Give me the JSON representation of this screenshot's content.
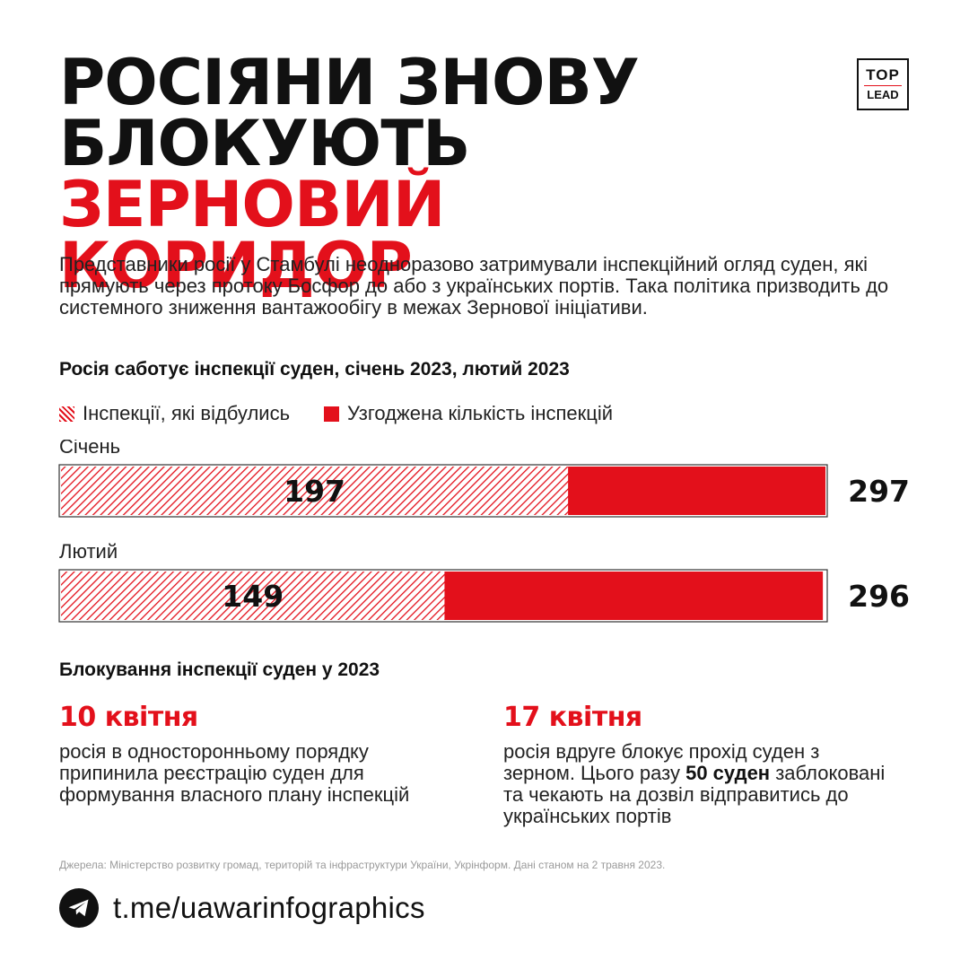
{
  "title": {
    "line1": "РОСІЯНИ ЗНОВУ",
    "line2_black": "БЛОКУЮТЬ ",
    "line2_red": "ЗЕРНОВИЙ",
    "line3_red": "КОРИДОР"
  },
  "logo": {
    "top": "TOP",
    "bottom": "LEAD"
  },
  "intro": "Представники росії у Стамбулі неодноразово затримували інспекційний огляд суден, які прямують через протоку Босфор до або з українських портів. Така політика призводить до системного зниження вантажообігу в межах Зернової ініціативи.",
  "chart_data": {
    "type": "bar",
    "orientation": "horizontal",
    "title": "Росія саботує інспекції суден, січень 2023, лютий 2023",
    "legend": [
      {
        "label": "Інспекції, які відбулись",
        "style": "hatched",
        "color": "#e3101b"
      },
      {
        "label": "Узгоджена кількість інспекцій",
        "style": "solid",
        "color": "#e3101b"
      }
    ],
    "categories": [
      "Січень",
      "Лютий"
    ],
    "series": [
      {
        "name": "Інспекції, які відбулись",
        "values": [
          197,
          149
        ]
      },
      {
        "name": "Узгоджена кількість інспекцій",
        "values": [
          297,
          296
        ]
      }
    ],
    "value_labels": {
      "occurred": [
        "197",
        "149"
      ],
      "agreed": [
        "297",
        "296"
      ]
    }
  },
  "blocking": {
    "title": "Блокування інспекції суден у 2023",
    "events": [
      {
        "date": "10 квітня",
        "desc": "росія в односторонньому порядку припинила реєстрацію суден для формування власного плану інспекцій"
      },
      {
        "date": "17 квітня",
        "desc_before": "росія вдруге блокує прохід суден з зерном. Цього разу ",
        "desc_bold": "50 суден",
        "desc_after": " заблоковані та чекають на дозвіл відправитись до українських портів"
      }
    ]
  },
  "sources": "Джерела: Міністерство розвитку громад, територій та інфраструктури України, Укрінформ. Дані станом на 2 травня 2023.",
  "footer": {
    "link": "t.me/uawarinfographics"
  },
  "colors": {
    "accent": "#e3101b",
    "text": "#111111"
  }
}
